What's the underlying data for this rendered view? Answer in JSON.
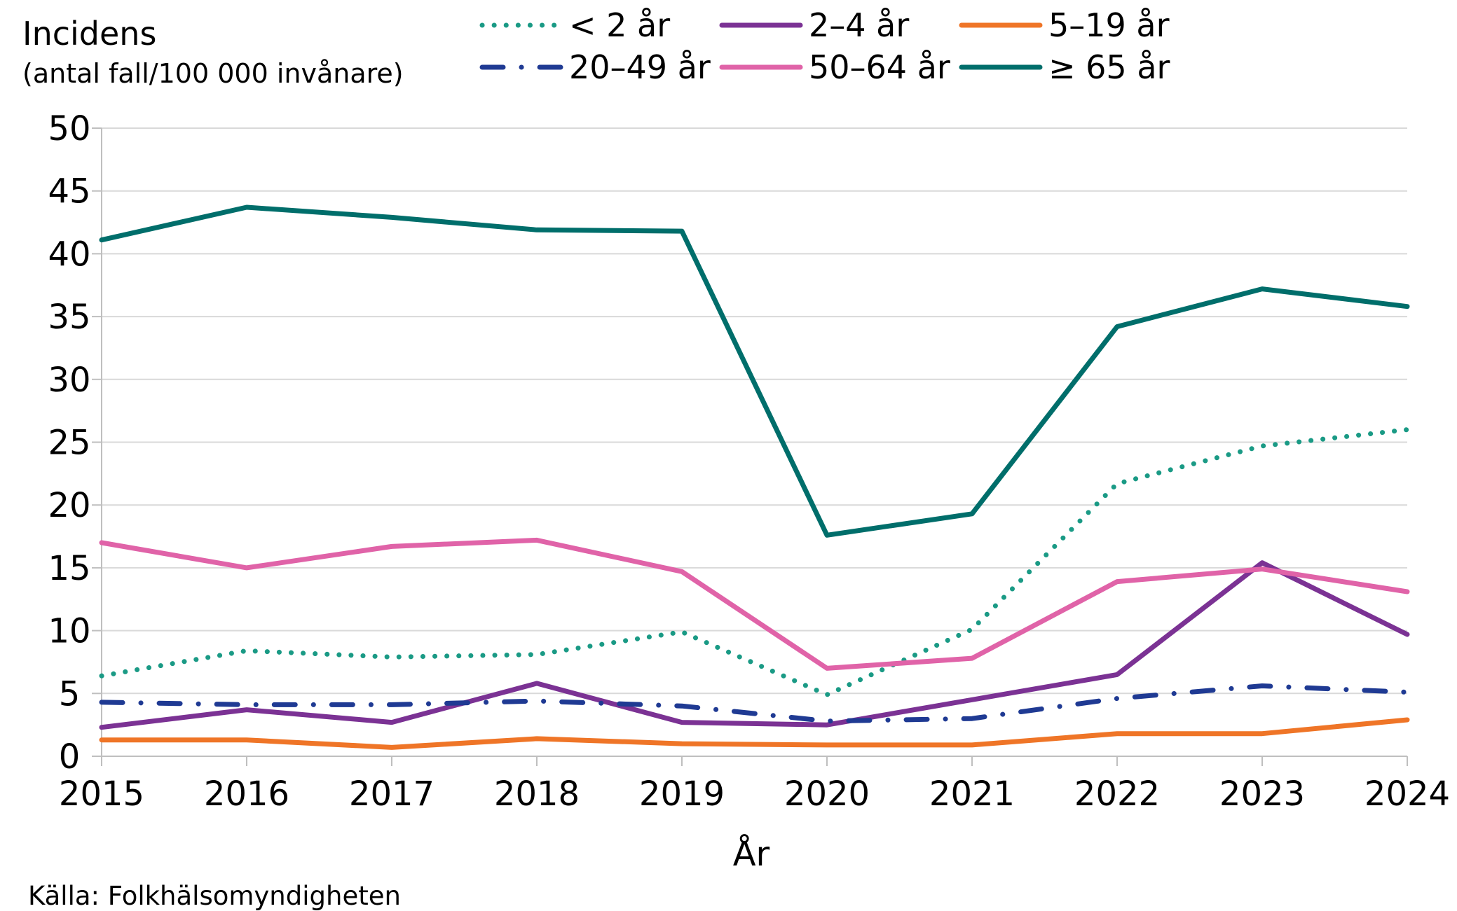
{
  "chart_data": {
    "type": "line",
    "ylabel": "Incidens",
    "ylabel_sub": "(antal fall/100 000 invånare)",
    "xlabel": "År",
    "source": "Källa: Folkhälsomyndigheten",
    "x": [
      "2015",
      "2016",
      "2017",
      "2018",
      "2019",
      "2020",
      "2021",
      "2022",
      "2023",
      "2024"
    ],
    "ylim": [
      0,
      50
    ],
    "yticks": [
      "0",
      "5",
      "10",
      "15",
      "20",
      "25",
      "30",
      "35",
      "40",
      "45",
      "50"
    ],
    "grid": true,
    "legend_position": "top",
    "series": [
      {
        "name": "< 2 år",
        "color": "#1a9a85",
        "style": "dotted",
        "values": [
          6.4,
          8.4,
          7.9,
          8.1,
          9.9,
          4.9,
          10.1,
          21.7,
          24.7,
          26.0
        ]
      },
      {
        "name": "2–4 år",
        "color": "#7b3294",
        "style": "solid",
        "values": [
          2.3,
          3.7,
          2.7,
          5.8,
          2.7,
          2.5,
          4.5,
          6.5,
          15.4,
          9.7
        ]
      },
      {
        "name": "5–19 år",
        "color": "#ef7527",
        "style": "solid",
        "values": [
          1.3,
          1.3,
          0.7,
          1.4,
          1.0,
          0.9,
          0.9,
          1.8,
          1.8,
          2.9
        ]
      },
      {
        "name": "20–49 år",
        "color": "#1f3a93",
        "style": "dashdot",
        "values": [
          4.3,
          4.1,
          4.1,
          4.4,
          4.0,
          2.8,
          3.0,
          4.6,
          5.6,
          5.1
        ]
      },
      {
        "name": "50–64 år",
        "color": "#e063a8",
        "style": "solid",
        "values": [
          17.0,
          15.0,
          16.7,
          17.2,
          14.7,
          7.0,
          7.8,
          13.9,
          14.9,
          13.1
        ]
      },
      {
        "name": "≥ 65 år",
        "color": "#006e6b",
        "style": "solid",
        "values": [
          41.1,
          43.7,
          42.9,
          41.9,
          41.8,
          17.6,
          19.3,
          34.2,
          37.2,
          35.8
        ]
      }
    ]
  }
}
